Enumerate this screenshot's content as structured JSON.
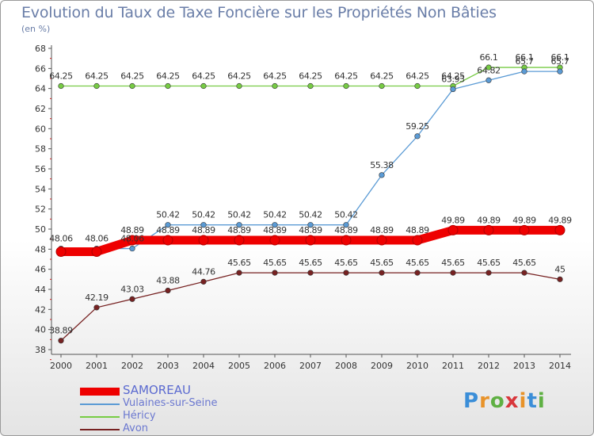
{
  "chart_data": {
    "type": "line",
    "title": "Evolution du Taux de Taxe Foncière sur les Propriétés Non Bâties",
    "subtitle": "(en %)",
    "x": [
      2000,
      2001,
      2002,
      2003,
      2004,
      2005,
      2006,
      2007,
      2008,
      2009,
      2010,
      2011,
      2012,
      2013,
      2014
    ],
    "ylim": [
      38,
      68
    ],
    "yticks": [
      38,
      40,
      42,
      44,
      46,
      48,
      50,
      52,
      54,
      56,
      58,
      60,
      62,
      64,
      66,
      68
    ],
    "grid": false,
    "legend_position": "bottom-left",
    "series": [
      {
        "name": "SAMOREAU",
        "color": "#ee0000",
        "values": [
          47.75,
          47.75,
          48.89,
          48.89,
          48.89,
          48.89,
          48.89,
          48.89,
          48.89,
          48.89,
          48.89,
          49.89,
          49.89,
          49.89,
          49.89
        ],
        "labels": [
          "",
          "",
          "48.89",
          "48.89",
          "48.89",
          "48.89",
          "48.89",
          "48.89",
          "48.89",
          "48.89",
          "48.89",
          "49.89",
          "49.89",
          "49.89",
          "49.89"
        ]
      },
      {
        "name": "Vulaines-sur-Seine",
        "color": "#5b9bd5",
        "values": [
          48.06,
          48.06,
          48.06,
          50.42,
          50.42,
          50.42,
          50.42,
          50.42,
          50.42,
          55.38,
          59.25,
          63.93,
          64.82,
          65.7,
          65.7
        ],
        "labels": [
          "48.06",
          "48.06",
          "48.06",
          "50.42",
          "50.42",
          "50.42",
          "50.42",
          "50.42",
          "50.42",
          "55.38",
          "59.25",
          "63.93",
          "64.82",
          "65.7",
          "65.7"
        ]
      },
      {
        "name": "Héricy",
        "color": "#77cc44",
        "values": [
          64.25,
          64.25,
          64.25,
          64.25,
          64.25,
          64.25,
          64.25,
          64.25,
          64.25,
          64.25,
          64.25,
          64.25,
          66.1,
          66.1,
          66.1
        ],
        "labels": [
          "64.25",
          "64.25",
          "64.25",
          "64.25",
          "64.25",
          "64.25",
          "64.25",
          "64.25",
          "64.25",
          "64.25",
          "64.25",
          "64.25",
          "66.1",
          "66.1",
          "66.1"
        ]
      },
      {
        "name": "Avon",
        "color": "#772222",
        "values": [
          38.89,
          42.19,
          43.03,
          43.88,
          44.76,
          45.65,
          45.65,
          45.65,
          45.65,
          45.65,
          45.65,
          45.65,
          45.65,
          45.65,
          45
        ],
        "labels": [
          "38.89",
          "42.19",
          "43.03",
          "43.88",
          "44.76",
          "45.65",
          "45.65",
          "45.65",
          "45.65",
          "45.65",
          "45.65",
          "45.65",
          "45.65",
          "45.65",
          "45"
        ]
      }
    ]
  },
  "logo": {
    "letters": [
      "P",
      "r",
      "o",
      "x",
      "i",
      "t",
      "i"
    ]
  }
}
